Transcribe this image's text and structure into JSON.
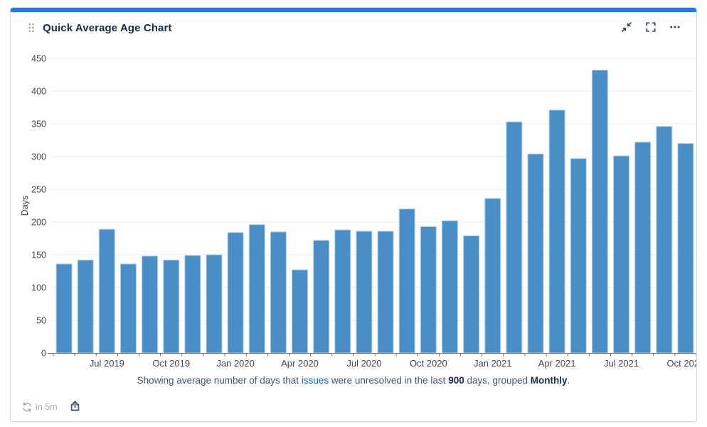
{
  "gadget": {
    "title": "Quick Average Age Chart"
  },
  "chart_data": {
    "type": "bar",
    "title": "Quick Average Age Chart",
    "xlabel": "",
    "ylabel": "Days",
    "ylim": [
      0,
      450
    ],
    "y_ticks": [
      0,
      50,
      100,
      150,
      200,
      250,
      300,
      350,
      400,
      450
    ],
    "grid": true,
    "legend_position": "none",
    "x_tick_every": 3,
    "x_tick_start_index": 2,
    "categories": [
      "May 2019",
      "Jun 2019",
      "Jul 2019",
      "Aug 2019",
      "Sep 2019",
      "Oct 2019",
      "Nov 2019",
      "Dec 2019",
      "Jan 2020",
      "Feb 2020",
      "Mar 2020",
      "Apr 2020",
      "May 2020",
      "Jun 2020",
      "Jul 2020",
      "Aug 2020",
      "Sep 2020",
      "Oct 2020",
      "Nov 2020",
      "Dec 2020",
      "Jan 2021",
      "Feb 2021",
      "Mar 2021",
      "Apr 2021",
      "May 2021",
      "Jun 2021",
      "Jul 2021",
      "Aug 2021",
      "Sep 2021",
      "Oct 2021"
    ],
    "values": [
      136,
      142,
      189,
      136,
      148,
      142,
      149,
      150,
      184,
      196,
      185,
      127,
      172,
      188,
      186,
      186,
      220,
      193,
      202,
      179,
      236,
      353,
      304,
      371,
      297,
      432,
      301,
      322,
      346,
      320
    ],
    "visible_x_tick_labels": [
      "Jul 2019",
      "Oct 2019",
      "Jan 2020",
      "Apr 2020",
      "Jul 2020",
      "Oct 2020",
      "Jan 2021",
      "Apr 2021",
      "Jul 2021",
      "Oct 20"
    ]
  },
  "caption": {
    "prefix": "Showing average number of days that ",
    "link_text": "issues",
    "mid1": " were unresolved in the last ",
    "days": "900",
    "mid2": " days, grouped ",
    "grouping": "Monthly",
    "suffix": "."
  },
  "statusbar": {
    "refresh_label": "in 5m"
  },
  "icons": {
    "drag_handle": "drag-handle-icon",
    "minimize": "minimize-diagonal-arrows-icon",
    "expand": "fullscreen-brackets-icon",
    "more": "ellipsis-icon",
    "refresh": "refresh-icon",
    "share": "share-export-icon"
  },
  "colors": {
    "accent": "#1d7afc",
    "bar_fill": "#4a8ec8",
    "bar_stroke": "#b5d1ea",
    "grid_line": "#ebecf2",
    "axis_line": "#757575",
    "tick_text": "#3f4550",
    "title_text": "#172b4d",
    "body_text": "#44546f",
    "muted_text": "#a5adba",
    "link": "#0c66e4",
    "card_border": "#d3d7e0",
    "header_icon": "#344563",
    "drag_dot": "#97a0af"
  }
}
